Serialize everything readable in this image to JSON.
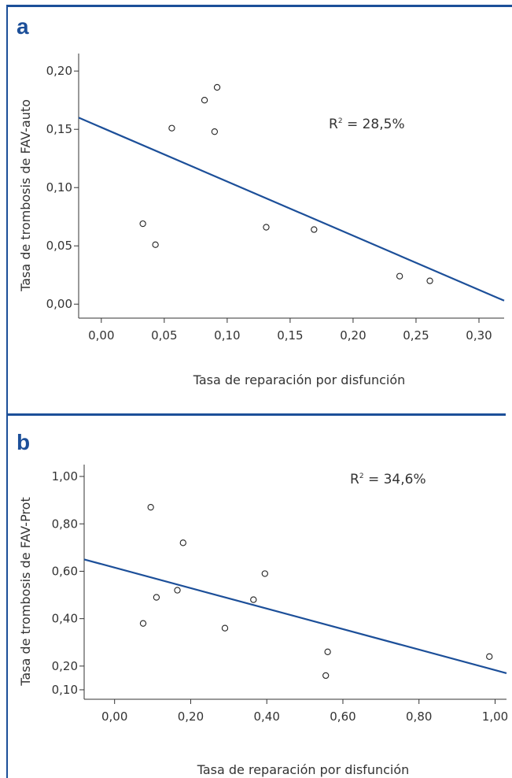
{
  "colors": {
    "accent": "#1c4f99",
    "axis": "#333333",
    "point_stroke": "#222222"
  },
  "chart_data": [
    {
      "type": "scatter",
      "panel_label": "a",
      "xlabel": "Tasa de reparación por disfunción",
      "ylabel": "Tasa de trombosis de FAV-auto",
      "xlim": [
        -0.018,
        0.32
      ],
      "ylim": [
        -0.012,
        0.215
      ],
      "xticks": [
        0.0,
        0.05,
        0.1,
        0.15,
        0.2,
        0.25,
        0.3
      ],
      "xtick_labels": [
        "0,00",
        "0,05",
        "0,10",
        "0,15",
        "0,20",
        "0,25",
        "0,30"
      ],
      "yticks": [
        0.0,
        0.05,
        0.1,
        0.15,
        0.2
      ],
      "ytick_labels": [
        "0,00",
        "0,05",
        "0,10",
        "0,15",
        "0,20"
      ],
      "annotation": {
        "prefix": "R",
        "sup": "2",
        "suffix": " = 28,5%"
      },
      "points": [
        {
          "x": 0.033,
          "y": 0.069
        },
        {
          "x": 0.043,
          "y": 0.051
        },
        {
          "x": 0.056,
          "y": 0.151
        },
        {
          "x": 0.082,
          "y": 0.175
        },
        {
          "x": 0.09,
          "y": 0.148
        },
        {
          "x": 0.092,
          "y": 0.186
        },
        {
          "x": 0.131,
          "y": 0.066
        },
        {
          "x": 0.169,
          "y": 0.064
        },
        {
          "x": 0.237,
          "y": 0.024
        },
        {
          "x": 0.261,
          "y": 0.02
        }
      ],
      "fit_line": {
        "x": [
          -0.018,
          0.32
        ],
        "y": [
          0.16,
          0.003
        ]
      }
    },
    {
      "type": "scatter",
      "panel_label": "b",
      "xlabel": "Tasa de reparación por disfunción",
      "ylabel": "Tasa de trombosis de FAV-Prot",
      "xlim": [
        -0.08,
        1.03
      ],
      "ylim": [
        0.06,
        1.05
      ],
      "xticks": [
        0.0,
        0.2,
        0.4,
        0.6,
        0.8,
        1.0
      ],
      "xtick_labels": [
        "0,00",
        "0,20",
        "0,40",
        "0,60",
        "0,80",
        "1,00"
      ],
      "yticks": [
        0.1,
        0.2,
        0.4,
        0.6,
        0.8,
        1.0
      ],
      "ytick_labels": [
        "0,10",
        "0,20",
        "0,40",
        "0,60",
        "0,80",
        "1,00"
      ],
      "annotation": {
        "prefix": "R",
        "sup": "2",
        "suffix": " = 34,6%"
      },
      "points": [
        {
          "x": 0.075,
          "y": 0.38
        },
        {
          "x": 0.095,
          "y": 0.87
        },
        {
          "x": 0.11,
          "y": 0.49
        },
        {
          "x": 0.165,
          "y": 0.52
        },
        {
          "x": 0.18,
          "y": 0.72
        },
        {
          "x": 0.29,
          "y": 0.36
        },
        {
          "x": 0.365,
          "y": 0.48
        },
        {
          "x": 0.395,
          "y": 0.59
        },
        {
          "x": 0.555,
          "y": 0.16
        },
        {
          "x": 0.56,
          "y": 0.26
        },
        {
          "x": 0.985,
          "y": 0.24
        }
      ],
      "fit_line": {
        "x": [
          -0.08,
          1.03
        ],
        "y": [
          0.65,
          0.17
        ]
      }
    }
  ]
}
